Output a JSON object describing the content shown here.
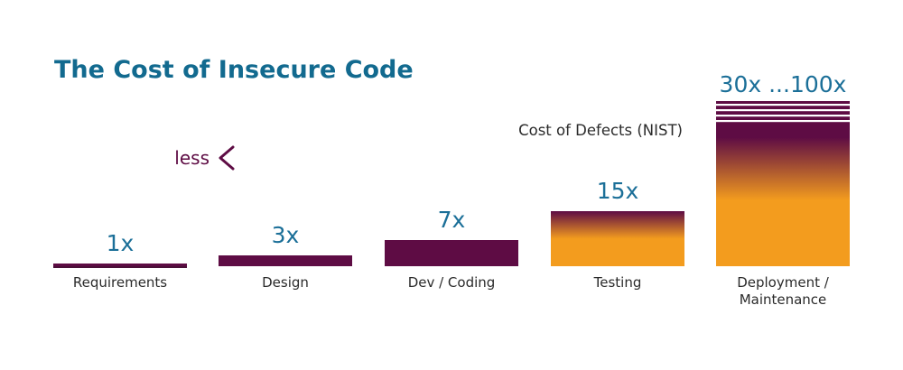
{
  "chart_data": {
    "type": "bar",
    "title": "The Cost of Insecure Code",
    "categories": [
      "Requirements",
      "Design",
      "Dev / Coding",
      "Testing",
      "Deployment / Maintenance"
    ],
    "category_lines": [
      [
        "Requirements"
      ],
      [
        "Design"
      ],
      [
        "Dev / Coding"
      ],
      [
        "Testing"
      ],
      [
        "Deployment /",
        "Maintenance"
      ]
    ],
    "values": [
      1,
      3,
      7,
      15,
      30
    ],
    "value_labels": [
      "1x",
      "3x",
      "7x",
      "15x",
      "30x ...100x"
    ],
    "annotation": "Cost of Defects (NIST)",
    "direction_label": "less",
    "colors": {
      "title": "#126a8f",
      "value_label": "#1b6f98",
      "category_label": "#2b2b2b",
      "annotation": "#2b2b2b",
      "bar_dark": "#5e0c44",
      "bar_orange": "#f39c1e",
      "arrow_start": "#f39c1e",
      "arrow_end": "#5e0c44",
      "less": "#5e0c44",
      "baseline": "#4a1038"
    }
  }
}
